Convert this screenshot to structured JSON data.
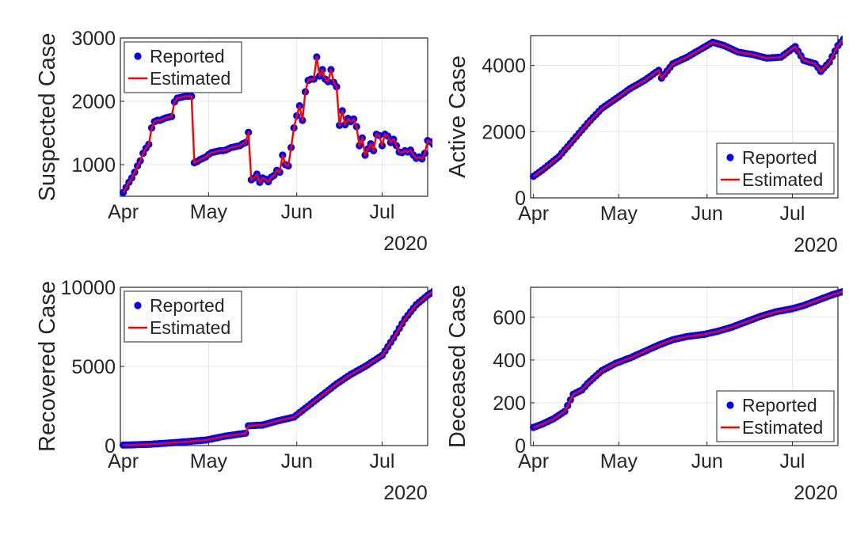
{
  "figure": {
    "colors": {
      "reported": "#0000ff",
      "estimated": "#ff0000",
      "axis": "#262626",
      "grid": "#e6e6e6"
    }
  },
  "legend": {
    "reported_label": "Reported",
    "estimated_label": "Estimated"
  },
  "x_axis": {
    "type": "date",
    "range": [
      "2020-03-31",
      "2020-07-17"
    ],
    "ticks": [
      {
        "date": "2020-04-01",
        "label": "Apr"
      },
      {
        "date": "2020-05-01",
        "label": "May"
      },
      {
        "date": "2020-06-01",
        "label": "Jun"
      },
      {
        "date": "2020-07-01",
        "label": "Jul"
      }
    ],
    "year_label": "2020"
  },
  "chart_data": [
    {
      "type": "line",
      "ylabel": "Suspected Case",
      "ylim": [
        500,
        3000
      ],
      "yticks": [
        1000,
        2000,
        3000
      ],
      "legend_position": "top-left",
      "grid": true,
      "series": [
        {
          "name": "Reported",
          "style": "markers"
        },
        {
          "name": "Estimated",
          "style": "line"
        }
      ],
      "points": [
        [
          "2020-04-01",
          560
        ],
        [
          "2020-04-02",
          640
        ],
        [
          "2020-04-03",
          720
        ],
        [
          "2020-04-04",
          790
        ],
        [
          "2020-04-05",
          880
        ],
        [
          "2020-04-06",
          980
        ],
        [
          "2020-04-07",
          1060
        ],
        [
          "2020-04-08",
          1180
        ],
        [
          "2020-04-09",
          1260
        ],
        [
          "2020-04-10",
          1320
        ],
        [
          "2020-04-11",
          1580
        ],
        [
          "2020-04-12",
          1680
        ],
        [
          "2020-04-13",
          1700
        ],
        [
          "2020-04-14",
          1700
        ],
        [
          "2020-04-15",
          1720
        ],
        [
          "2020-04-16",
          1740
        ],
        [
          "2020-04-17",
          1750
        ],
        [
          "2020-04-18",
          1760
        ],
        [
          "2020-04-19",
          1990
        ],
        [
          "2020-04-20",
          2050
        ],
        [
          "2020-04-21",
          2060
        ],
        [
          "2020-04-22",
          2070
        ],
        [
          "2020-04-23",
          2080
        ],
        [
          "2020-04-24",
          2080
        ],
        [
          "2020-04-25",
          2080
        ],
        [
          "2020-04-26",
          1030
        ],
        [
          "2020-04-27",
          1050
        ],
        [
          "2020-04-28",
          1080
        ],
        [
          "2020-04-29",
          1100
        ],
        [
          "2020-04-30",
          1120
        ],
        [
          "2020-05-01",
          1160
        ],
        [
          "2020-05-02",
          1190
        ],
        [
          "2020-05-03",
          1200
        ],
        [
          "2020-05-04",
          1210
        ],
        [
          "2020-05-05",
          1220
        ],
        [
          "2020-05-06",
          1220
        ],
        [
          "2020-05-07",
          1230
        ],
        [
          "2020-05-08",
          1250
        ],
        [
          "2020-05-09",
          1270
        ],
        [
          "2020-05-10",
          1280
        ],
        [
          "2020-05-11",
          1290
        ],
        [
          "2020-05-12",
          1300
        ],
        [
          "2020-05-13",
          1330
        ],
        [
          "2020-05-14",
          1350
        ],
        [
          "2020-05-15",
          1510
        ],
        [
          "2020-05-16",
          760
        ],
        [
          "2020-05-17",
          790
        ],
        [
          "2020-05-18",
          850
        ],
        [
          "2020-05-19",
          720
        ],
        [
          "2020-05-20",
          790
        ],
        [
          "2020-05-21",
          770
        ],
        [
          "2020-05-22",
          730
        ],
        [
          "2020-05-23",
          800
        ],
        [
          "2020-05-24",
          830
        ],
        [
          "2020-05-25",
          910
        ],
        [
          "2020-05-26",
          880
        ],
        [
          "2020-05-27",
          1150
        ],
        [
          "2020-05-28",
          1000
        ],
        [
          "2020-05-29",
          980
        ],
        [
          "2020-05-30",
          1270
        ],
        [
          "2020-05-31",
          1580
        ],
        [
          "2020-06-01",
          1770
        ],
        [
          "2020-06-02",
          1930
        ],
        [
          "2020-06-03",
          1700
        ],
        [
          "2020-06-04",
          2150
        ],
        [
          "2020-06-05",
          2330
        ],
        [
          "2020-06-06",
          2350
        ],
        [
          "2020-06-07",
          2350
        ],
        [
          "2020-06-08",
          2700
        ],
        [
          "2020-06-09",
          2400
        ],
        [
          "2020-06-10",
          2500
        ],
        [
          "2020-06-11",
          2350
        ],
        [
          "2020-06-12",
          2310
        ],
        [
          "2020-06-13",
          2500
        ],
        [
          "2020-06-14",
          2300
        ],
        [
          "2020-06-15",
          2230
        ],
        [
          "2020-06-16",
          1620
        ],
        [
          "2020-06-17",
          1850
        ],
        [
          "2020-06-18",
          1630
        ],
        [
          "2020-06-19",
          1730
        ],
        [
          "2020-06-20",
          1680
        ],
        [
          "2020-06-21",
          1720
        ],
        [
          "2020-06-22",
          1600
        ],
        [
          "2020-06-23",
          1300
        ],
        [
          "2020-06-24",
          1420
        ],
        [
          "2020-06-25",
          1150
        ],
        [
          "2020-06-26",
          1250
        ],
        [
          "2020-06-27",
          1330
        ],
        [
          "2020-06-28",
          1220
        ],
        [
          "2020-06-29",
          1480
        ],
        [
          "2020-06-30",
          1460
        ],
        [
          "2020-07-01",
          1300
        ],
        [
          "2020-07-02",
          1480
        ],
        [
          "2020-07-03",
          1450
        ],
        [
          "2020-07-04",
          1350
        ],
        [
          "2020-07-05",
          1400
        ],
        [
          "2020-07-06",
          1300
        ],
        [
          "2020-07-07",
          1200
        ],
        [
          "2020-07-08",
          1190
        ],
        [
          "2020-07-09",
          1220
        ],
        [
          "2020-07-10",
          1200
        ],
        [
          "2020-07-11",
          1230
        ],
        [
          "2020-07-12",
          1150
        ],
        [
          "2020-07-13",
          1100
        ],
        [
          "2020-07-14",
          1120
        ],
        [
          "2020-07-15",
          1090
        ],
        [
          "2020-07-16",
          1180
        ],
        [
          "2020-07-17",
          1380
        ],
        [
          "2020-07-18",
          1360
        ],
        [
          "2020-07-19",
          1320
        ]
      ]
    },
    {
      "type": "line",
      "ylabel": "Active Case",
      "ylim": [
        0,
        4900
      ],
      "yticks": [
        0,
        2000,
        4000
      ],
      "legend_position": "bottom-right",
      "grid": true,
      "series": [
        {
          "name": "Reported",
          "style": "markers"
        },
        {
          "name": "Estimated",
          "style": "line"
        }
      ],
      "points": [
        [
          "2020-04-01",
          650
        ],
        [
          "2020-04-05",
          900
        ],
        [
          "2020-04-10",
          1250
        ],
        [
          "2020-04-15",
          1750
        ],
        [
          "2020-04-20",
          2250
        ],
        [
          "2020-04-25",
          2700
        ],
        [
          "2020-04-30",
          3000
        ],
        [
          "2020-05-05",
          3300
        ],
        [
          "2020-05-10",
          3550
        ],
        [
          "2020-05-15",
          3850
        ],
        [
          "2020-05-16",
          3620
        ],
        [
          "2020-05-20",
          4050
        ],
        [
          "2020-05-25",
          4250
        ],
        [
          "2020-05-30",
          4500
        ],
        [
          "2020-06-03",
          4700
        ],
        [
          "2020-06-07",
          4600
        ],
        [
          "2020-06-12",
          4400
        ],
        [
          "2020-06-17",
          4330
        ],
        [
          "2020-06-22",
          4220
        ],
        [
          "2020-06-27",
          4250
        ],
        [
          "2020-07-02",
          4570
        ],
        [
          "2020-07-05",
          4150
        ],
        [
          "2020-07-09",
          4050
        ],
        [
          "2020-07-11",
          3820
        ],
        [
          "2020-07-14",
          4100
        ],
        [
          "2020-07-17",
          4600
        ],
        [
          "2020-07-20",
          4900
        ]
      ]
    },
    {
      "type": "line",
      "ylabel": "Recovered Case",
      "ylim": [
        0,
        10000
      ],
      "yticks": [
        0,
        5000,
        10000
      ],
      "legend_position": "top-left",
      "grid": true,
      "series": [
        {
          "name": "Reported",
          "style": "markers"
        },
        {
          "name": "Estimated",
          "style": "line"
        }
      ],
      "points": [
        [
          "2020-04-01",
          30
        ],
        [
          "2020-04-10",
          80
        ],
        [
          "2020-04-20",
          200
        ],
        [
          "2020-04-30",
          350
        ],
        [
          "2020-05-07",
          600
        ],
        [
          "2020-05-14",
          780
        ],
        [
          "2020-05-15",
          1250
        ],
        [
          "2020-05-20",
          1300
        ],
        [
          "2020-05-25",
          1550
        ],
        [
          "2020-05-31",
          1800
        ],
        [
          "2020-06-05",
          2500
        ],
        [
          "2020-06-10",
          3200
        ],
        [
          "2020-06-15",
          3900
        ],
        [
          "2020-06-20",
          4500
        ],
        [
          "2020-06-25",
          5000
        ],
        [
          "2020-07-01",
          5700
        ],
        [
          "2020-07-05",
          6800
        ],
        [
          "2020-07-09",
          8000
        ],
        [
          "2020-07-13",
          8900
        ],
        [
          "2020-07-17",
          9500
        ],
        [
          "2020-07-20",
          9850
        ]
      ]
    },
    {
      "type": "line",
      "ylabel": "Deceased Case",
      "ylim": [
        0,
        740
      ],
      "yticks": [
        0,
        200,
        400,
        600
      ],
      "legend_position": "bottom-right",
      "grid": true,
      "series": [
        {
          "name": "Reported",
          "style": "markers"
        },
        {
          "name": "Estimated",
          "style": "line"
        }
      ],
      "points": [
        [
          "2020-04-01",
          85
        ],
        [
          "2020-04-04",
          100
        ],
        [
          "2020-04-08",
          125
        ],
        [
          "2020-04-12",
          160
        ],
        [
          "2020-04-15",
          240
        ],
        [
          "2020-04-18",
          260
        ],
        [
          "2020-04-20",
          290
        ],
        [
          "2020-04-25",
          350
        ],
        [
          "2020-04-30",
          385
        ],
        [
          "2020-05-05",
          410
        ],
        [
          "2020-05-10",
          440
        ],
        [
          "2020-05-15",
          470
        ],
        [
          "2020-05-20",
          495
        ],
        [
          "2020-05-25",
          510
        ],
        [
          "2020-05-31",
          520
        ],
        [
          "2020-06-05",
          535
        ],
        [
          "2020-06-10",
          555
        ],
        [
          "2020-06-15",
          580
        ],
        [
          "2020-06-20",
          605
        ],
        [
          "2020-06-25",
          625
        ],
        [
          "2020-07-01",
          640
        ],
        [
          "2020-07-05",
          655
        ],
        [
          "2020-07-10",
          680
        ],
        [
          "2020-07-15",
          705
        ],
        [
          "2020-07-20",
          725
        ]
      ]
    }
  ]
}
